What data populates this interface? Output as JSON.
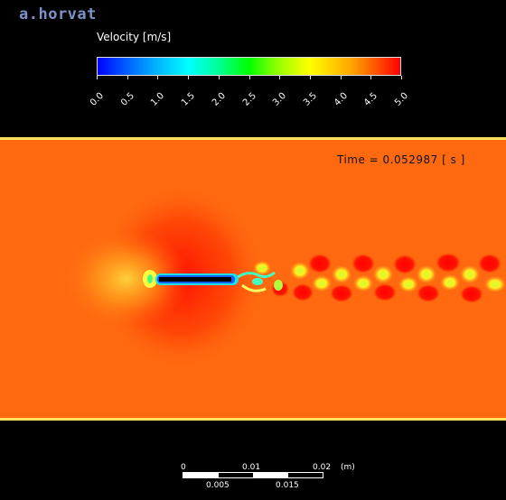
{
  "author": "a.horvat",
  "legend": {
    "title": "Velocity  [m/s]",
    "ticks": [
      "0.0",
      "0.5",
      "1.0",
      "1.5",
      "2.0",
      "2.5",
      "3.0",
      "3.5",
      "4.0",
      "4.5",
      "5.0"
    ]
  },
  "time_label": "Time = 0.052987 [ s ]",
  "scale_bar": {
    "top_labels": [
      "0",
      "0.01",
      "0.02",
      "(m)"
    ],
    "bottom_labels": [
      "0.005",
      "0.015"
    ]
  },
  "colors": {
    "background": "#000000",
    "flow_bulk": "#ff6a10",
    "wake_high": "#ff0000",
    "wake_low": "#e6ff20",
    "author": "#7c92c8"
  }
}
